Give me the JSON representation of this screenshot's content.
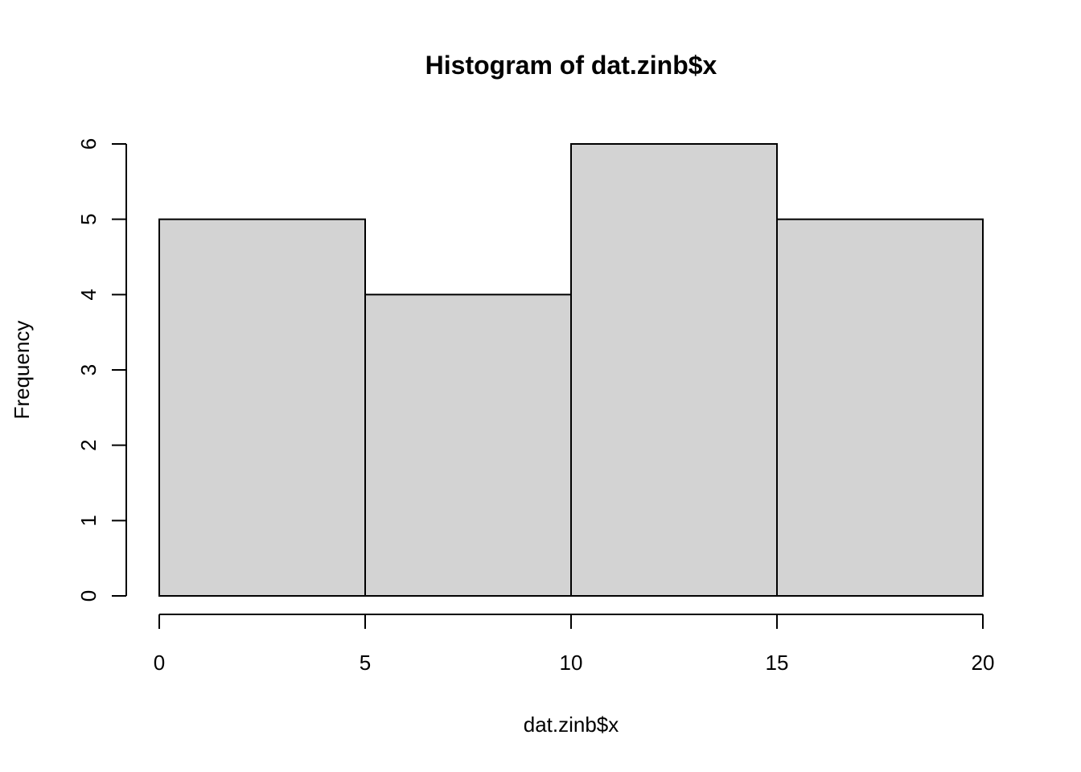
{
  "chart_data": {
    "type": "bar",
    "title": "Histogram of dat.zinb$x",
    "xlabel": "dat.zinb$x",
    "ylabel": "Frequency",
    "bins": [
      {
        "start": 0,
        "end": 5,
        "count": 5
      },
      {
        "start": 5,
        "end": 10,
        "count": 4
      },
      {
        "start": 10,
        "end": 15,
        "count": 6
      },
      {
        "start": 15,
        "end": 20,
        "count": 5
      }
    ],
    "xlim": [
      0,
      20
    ],
    "ylim": [
      0,
      6
    ],
    "x_ticks": [
      "0",
      "5",
      "10",
      "15",
      "20"
    ],
    "y_ticks": [
      "0",
      "1",
      "2",
      "3",
      "4",
      "5",
      "6"
    ],
    "bar_color": "#d3d3d3",
    "grid": false,
    "legend": "none"
  }
}
